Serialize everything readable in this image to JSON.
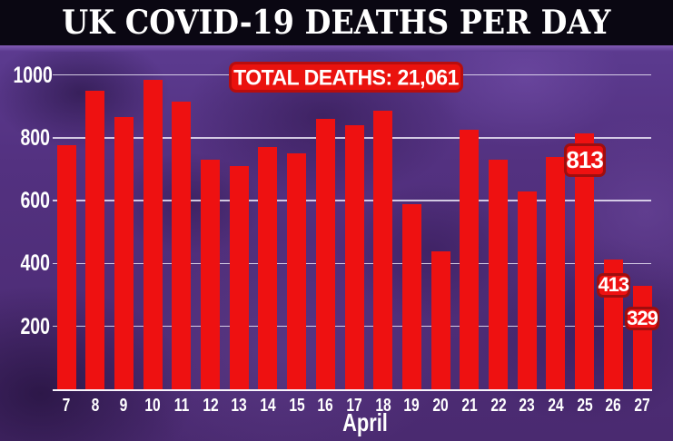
{
  "header": {
    "title": "UK COVID-19 DEATHS PER DAY"
  },
  "chart_data": {
    "type": "bar",
    "title": "UK COVID-19 DEATHS PER DAY",
    "total_label": "TOTAL DEATHS: 21,061",
    "total_deaths": 21061,
    "xlabel": "April",
    "ylabel": "",
    "categories": [
      "7",
      "8",
      "9",
      "10",
      "11",
      "12",
      "13",
      "14",
      "15",
      "16",
      "17",
      "18",
      "19",
      "20",
      "21",
      "22",
      "23",
      "24",
      "25",
      "26",
      "27"
    ],
    "values": [
      775,
      950,
      865,
      985,
      915,
      730,
      710,
      770,
      750,
      860,
      840,
      885,
      590,
      440,
      825,
      730,
      630,
      740,
      813,
      413,
      329
    ],
    "data_labels": [
      {
        "category": "25",
        "value": 813
      },
      {
        "category": "26",
        "value": 413
      },
      {
        "category": "27",
        "value": 329
      }
    ],
    "yticks": [
      200,
      400,
      600,
      800,
      1000
    ],
    "ylim": [
      0,
      1000
    ],
    "grid": true,
    "legend": false,
    "bar_color": "#ee1111",
    "background_color": "#533180",
    "header_color": "#0a0712",
    "axis_text_color": "#ffffff",
    "badge_border_color": "#9e0e0e",
    "banner_border_color": "#b80d0d"
  }
}
